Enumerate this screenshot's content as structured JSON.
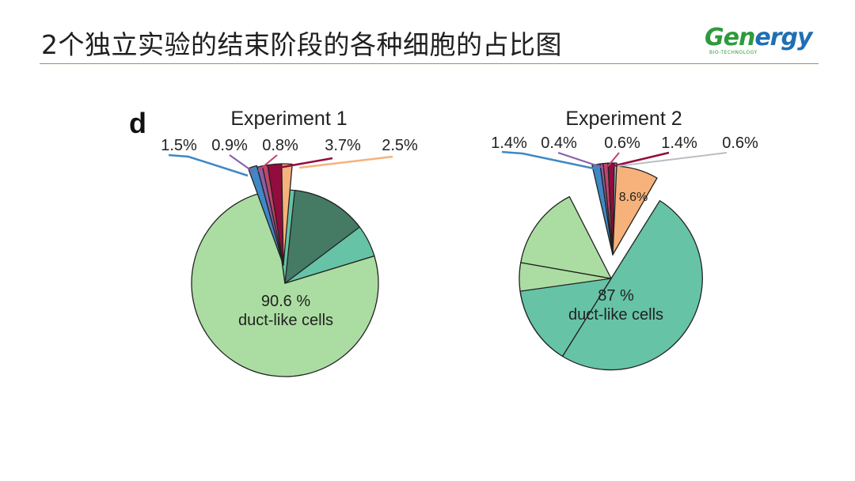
{
  "slide": {
    "title": "2个独立实验的结束阶段的各种细胞的占比图"
  },
  "logo": {
    "text_main": "Gen",
    "text_accent": "ergy",
    "subtitle": "BIO-TECHNOLOGY"
  },
  "chart_data": [
    {
      "type": "pie",
      "panel_label": "d",
      "title": "Experiment 1",
      "slices": [
        {
          "value": 90.6,
          "color": "#abdda2"
        },
        {
          "value": 1.5,
          "color": "#3f88c5"
        },
        {
          "value": 0.9,
          "color": "#8b5ea6"
        },
        {
          "value": 0.8,
          "color": "#c0446a"
        },
        {
          "value": 3.7,
          "color": "#920c3e"
        },
        {
          "value": 2.5,
          "color": "#f6b27a"
        }
      ],
      "extra_wedges": [
        {
          "color": "#457a65"
        },
        {
          "color": "#66c3a6"
        }
      ],
      "labels": [
        "1.5%",
        "0.9%",
        "0.8%",
        "3.7%",
        "2.5%"
      ],
      "center_value": "90.6 %",
      "center_text": "duct-like cells"
    },
    {
      "type": "pie",
      "panel_label": "",
      "title": "Experiment 2",
      "slices": [
        {
          "value": 87,
          "color": "#66c3a6"
        },
        {
          "value": 8.6,
          "color": "#f6b27a"
        },
        {
          "value": 1.4,
          "color": "#3f88c5"
        },
        {
          "value": 0.4,
          "color": "#8b5ea6"
        },
        {
          "value": 0.6,
          "color": "#c0446a"
        },
        {
          "value": 1.4,
          "color": "#920c3e"
        },
        {
          "value": 0.6,
          "color": "#b8bec4"
        }
      ],
      "extra_wedges": [
        {
          "color": "#abdda2"
        }
      ],
      "labels": [
        "1.4%",
        "0.4%",
        "0.6%",
        "1.4%",
        "0.6%"
      ],
      "inner_label": "8.6%",
      "center_value": "87 %",
      "center_text": "duct-like cells"
    }
  ]
}
